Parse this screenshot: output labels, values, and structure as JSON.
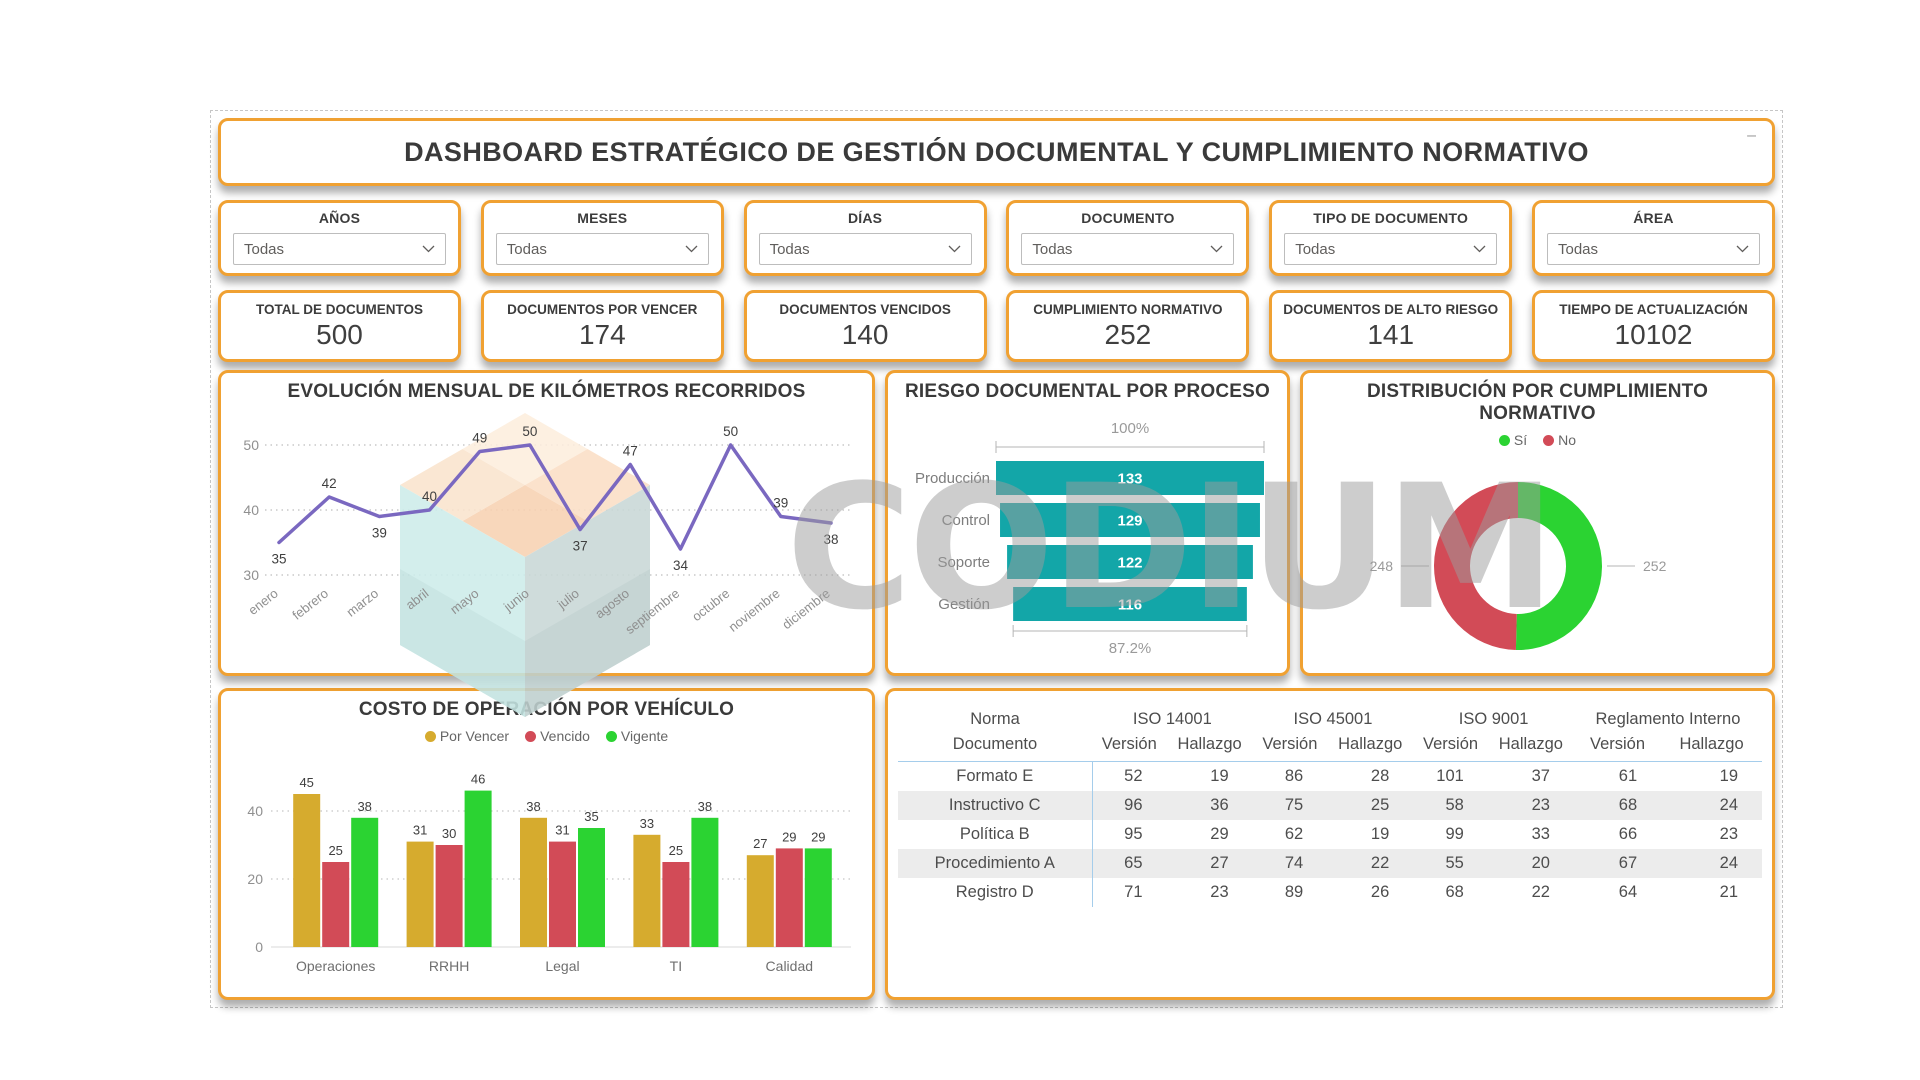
{
  "report": {
    "title": "DASHBOARD ESTRATÉGICO DE GESTIÓN DOCUMENTAL Y CUMPLIMIENTO NORMATIVO",
    "minimize_glyph": "–"
  },
  "filters": [
    {
      "label": "AÑOS",
      "value": "Todas"
    },
    {
      "label": "MESES",
      "value": "Todas"
    },
    {
      "label": "DÍAS",
      "value": "Todas"
    },
    {
      "label": "DOCUMENTO",
      "value": "Todas"
    },
    {
      "label": "TIPO DE DOCUMENTO",
      "value": "Todas"
    },
    {
      "label": "ÁREA",
      "value": "Todas"
    }
  ],
  "kpis": [
    {
      "label": "TOTAL DE DOCUMENTOS",
      "value": "500"
    },
    {
      "label": "DOCUMENTOS POR VENCER",
      "value": "174"
    },
    {
      "label": "DOCUMENTOS VENCIDOS",
      "value": "140"
    },
    {
      "label": "CUMPLIMIENTO NORMATIVO",
      "value": "252"
    },
    {
      "label": "DOCUMENTOS DE ALTO RIESGO",
      "value": "141"
    },
    {
      "label": "TIEMPO DE ACTUALIZACIÓN",
      "value": "10102"
    }
  ],
  "chart_data": [
    {
      "id": "line",
      "type": "line",
      "title": "EVOLUCIÓN MENSUAL DE KILÓMETROS RECORRIDOS",
      "categories": [
        "enero",
        "febrero",
        "marzo",
        "abril",
        "mayo",
        "junio",
        "julio",
        "agosto",
        "septiembre",
        "octubre",
        "noviembre",
        "diciembre"
      ],
      "values": [
        35,
        42,
        39,
        40,
        49,
        50,
        37,
        47,
        34,
        50,
        39,
        38
      ],
      "ylim": [
        30,
        50
      ],
      "yticks": [
        30,
        40,
        50
      ],
      "line_color": "#7a68c0",
      "grid": "dotted",
      "legend_position": "none"
    },
    {
      "id": "funnel",
      "type": "bar",
      "title": "RIESGO DOCUMENTAL POR PROCESO",
      "categories": [
        "Producción",
        "Control",
        "Soporte",
        "Gestión"
      ],
      "values": [
        133,
        129,
        122,
        116
      ],
      "top_label": "100%",
      "bottom_label": "87.2%",
      "bar_color": "#13a6a8",
      "orientation": "horizontal-funnel"
    },
    {
      "id": "donut",
      "type": "pie",
      "title": "DISTRIBUCIÓN POR CUMPLIMIENTO NORMATIVO",
      "legend": [
        {
          "name": "Sí",
          "color": "#2bd332"
        },
        {
          "name": "No",
          "color": "#d24b57"
        }
      ],
      "slices": [
        {
          "name": "Sí",
          "value": 252
        },
        {
          "name": "No",
          "value": 248
        }
      ],
      "callout_right": "252",
      "callout_left": "248",
      "legend_position": "top"
    },
    {
      "id": "bars",
      "type": "bar",
      "title": "COSTO DE OPERACIÓN POR VEHÍCULO",
      "categories": [
        "Operaciones",
        "RRHH",
        "Legal",
        "TI",
        "Calidad"
      ],
      "series": [
        {
          "name": "Por Vencer",
          "color": "#d6ab2e",
          "values": [
            45,
            31,
            38,
            33,
            27
          ]
        },
        {
          "name": "Vencido",
          "color": "#d24b57",
          "values": [
            25,
            30,
            31,
            25,
            29
          ]
        },
        {
          "name": "Vigente",
          "color": "#2bd332",
          "values": [
            38,
            46,
            35,
            38,
            29
          ]
        }
      ],
      "yticks": [
        0,
        20,
        40
      ],
      "ylim": [
        0,
        50
      ],
      "legend_position": "top"
    },
    {
      "id": "matrix",
      "type": "table",
      "header_first_line1": "Norma",
      "header_first_line2": "Documento",
      "col_groups": [
        "ISO 14001",
        "ISO 45001",
        "ISO 9001",
        "Reglamento Interno"
      ],
      "subheaders": [
        "Versión",
        "Hallazgo"
      ],
      "rows": [
        {
          "name": "Formato E",
          "values": [
            52,
            19,
            86,
            28,
            101,
            37,
            61,
            19
          ]
        },
        {
          "name": "Instructivo C",
          "values": [
            96,
            36,
            75,
            25,
            58,
            23,
            68,
            24
          ]
        },
        {
          "name": "Política B",
          "values": [
            95,
            29,
            62,
            19,
            99,
            33,
            66,
            23
          ]
        },
        {
          "name": "Procedimiento A",
          "values": [
            65,
            27,
            74,
            22,
            55,
            20,
            67,
            24
          ]
        },
        {
          "name": "Registro D",
          "values": [
            71,
            23,
            89,
            26,
            68,
            22,
            64,
            21
          ]
        }
      ]
    }
  ],
  "watermark": {
    "text": "CODIUM"
  },
  "colors": {
    "accent_orange": "#f0a132",
    "teal": "#13a6a8",
    "green": "#2bd332",
    "red": "#d24b57",
    "gold": "#d6ab2e",
    "purple": "#7a68c0",
    "axis_gray": "#909090"
  }
}
